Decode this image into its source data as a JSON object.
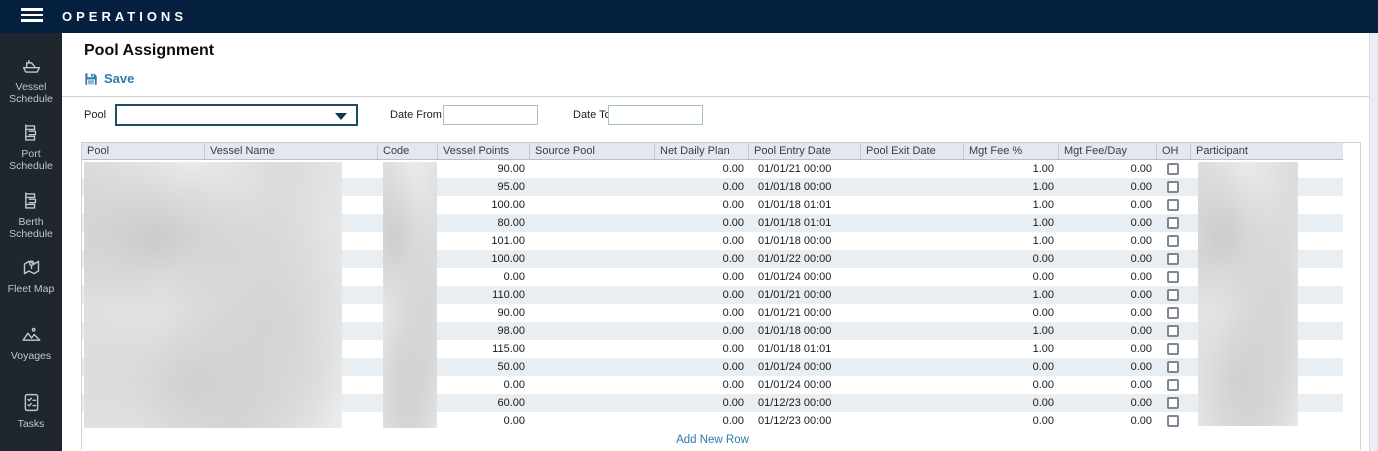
{
  "app": {
    "title": "OPERATIONS"
  },
  "sidebar": {
    "items": [
      {
        "label": "Vessel Schedule",
        "icon": "ship-icon"
      },
      {
        "label": "Port Schedule",
        "icon": "schedule-icon"
      },
      {
        "label": "Berth Schedule",
        "icon": "schedule-icon"
      },
      {
        "label": "Fleet Map",
        "icon": "map-pin-icon"
      },
      {
        "label": "Voyages",
        "icon": "mountains-pin-icon"
      },
      {
        "label": "Tasks",
        "icon": "checklist-icon"
      }
    ]
  },
  "page": {
    "title": "Pool Assignment",
    "save_label": "Save",
    "add_new_row_label": "Add New Row"
  },
  "filters": {
    "pool_label": "Pool",
    "pool_value": "",
    "date_from_label": "Date From",
    "date_from_value": "",
    "date_to_label": "Date To",
    "date_to_value": ""
  },
  "table": {
    "columns": [
      "Pool",
      "Vessel Name",
      "Code",
      "Vessel Points",
      "Source Pool",
      "Net Daily Plan",
      "Pool Entry Date",
      "Pool Exit Date",
      "Mgt Fee %",
      "Mgt Fee/Day",
      "OH",
      "Participant"
    ],
    "redacted_columns": [
      "Pool",
      "Vessel Name",
      "Code",
      "Participant"
    ],
    "rows": [
      {
        "vessel_points": "90.00",
        "source_pool": "",
        "net_daily_plan": "0.00",
        "pool_entry_date": "01/01/21 00:00",
        "pool_exit_date": "",
        "mgt_fee_pct": "1.00",
        "mgt_fee_day": "0.00",
        "oh_checked": false
      },
      {
        "vessel_points": "95.00",
        "source_pool": "",
        "net_daily_plan": "0.00",
        "pool_entry_date": "01/01/18 00:00",
        "pool_exit_date": "",
        "mgt_fee_pct": "1.00",
        "mgt_fee_day": "0.00",
        "oh_checked": false
      },
      {
        "vessel_points": "100.00",
        "source_pool": "",
        "net_daily_plan": "0.00",
        "pool_entry_date": "01/01/18 01:01",
        "pool_exit_date": "",
        "mgt_fee_pct": "1.00",
        "mgt_fee_day": "0.00",
        "oh_checked": false
      },
      {
        "vessel_points": "80.00",
        "source_pool": "",
        "net_daily_plan": "0.00",
        "pool_entry_date": "01/01/18 01:01",
        "pool_exit_date": "",
        "mgt_fee_pct": "1.00",
        "mgt_fee_day": "0.00",
        "oh_checked": false
      },
      {
        "vessel_points": "101.00",
        "source_pool": "",
        "net_daily_plan": "0.00",
        "pool_entry_date": "01/01/18 00:00",
        "pool_exit_date": "",
        "mgt_fee_pct": "1.00",
        "mgt_fee_day": "0.00",
        "oh_checked": false
      },
      {
        "vessel_points": "100.00",
        "source_pool": "",
        "net_daily_plan": "0.00",
        "pool_entry_date": "01/01/22 00:00",
        "pool_exit_date": "",
        "mgt_fee_pct": "0.00",
        "mgt_fee_day": "0.00",
        "oh_checked": false
      },
      {
        "vessel_points": "0.00",
        "source_pool": "",
        "net_daily_plan": "0.00",
        "pool_entry_date": "01/01/24 00:00",
        "pool_exit_date": "",
        "mgt_fee_pct": "0.00",
        "mgt_fee_day": "0.00",
        "oh_checked": false
      },
      {
        "vessel_points": "110.00",
        "source_pool": "",
        "net_daily_plan": "0.00",
        "pool_entry_date": "01/01/21 00:00",
        "pool_exit_date": "",
        "mgt_fee_pct": "1.00",
        "mgt_fee_day": "0.00",
        "oh_checked": false
      },
      {
        "vessel_points": "90.00",
        "source_pool": "",
        "net_daily_plan": "0.00",
        "pool_entry_date": "01/01/21 00:00",
        "pool_exit_date": "",
        "mgt_fee_pct": "0.00",
        "mgt_fee_day": "0.00",
        "oh_checked": false
      },
      {
        "vessel_points": "98.00",
        "source_pool": "",
        "net_daily_plan": "0.00",
        "pool_entry_date": "01/01/18 00:00",
        "pool_exit_date": "",
        "mgt_fee_pct": "1.00",
        "mgt_fee_day": "0.00",
        "oh_checked": false
      },
      {
        "vessel_points": "115.00",
        "source_pool": "",
        "net_daily_plan": "0.00",
        "pool_entry_date": "01/01/18 01:01",
        "pool_exit_date": "",
        "mgt_fee_pct": "1.00",
        "mgt_fee_day": "0.00",
        "oh_checked": false
      },
      {
        "vessel_points": "50.00",
        "source_pool": "",
        "net_daily_plan": "0.00",
        "pool_entry_date": "01/01/24 00:00",
        "pool_exit_date": "",
        "mgt_fee_pct": "0.00",
        "mgt_fee_day": "0.00",
        "oh_checked": false
      },
      {
        "vessel_points": "0.00",
        "source_pool": "",
        "net_daily_plan": "0.00",
        "pool_entry_date": "01/01/24 00:00",
        "pool_exit_date": "",
        "mgt_fee_pct": "0.00",
        "mgt_fee_day": "0.00",
        "oh_checked": false
      },
      {
        "vessel_points": "60.00",
        "source_pool": "",
        "net_daily_plan": "0.00",
        "pool_entry_date": "01/12/23 00:00",
        "pool_exit_date": "",
        "mgt_fee_pct": "0.00",
        "mgt_fee_day": "0.00",
        "oh_checked": false
      },
      {
        "vessel_points": "0.00",
        "source_pool": "",
        "net_daily_plan": "0.00",
        "pool_entry_date": "01/12/23 00:00",
        "pool_exit_date": "",
        "mgt_fee_pct": "0.00",
        "mgt_fee_day": "0.00",
        "oh_checked": false
      }
    ]
  },
  "colors": {
    "topbar": "#062140",
    "sidebar": "#1f262e",
    "accent_blue": "#2e7cab",
    "row_stripe": "#e8eef2",
    "header_bg": "#e6e7ee",
    "dropdown_border": "#1e4e64"
  }
}
